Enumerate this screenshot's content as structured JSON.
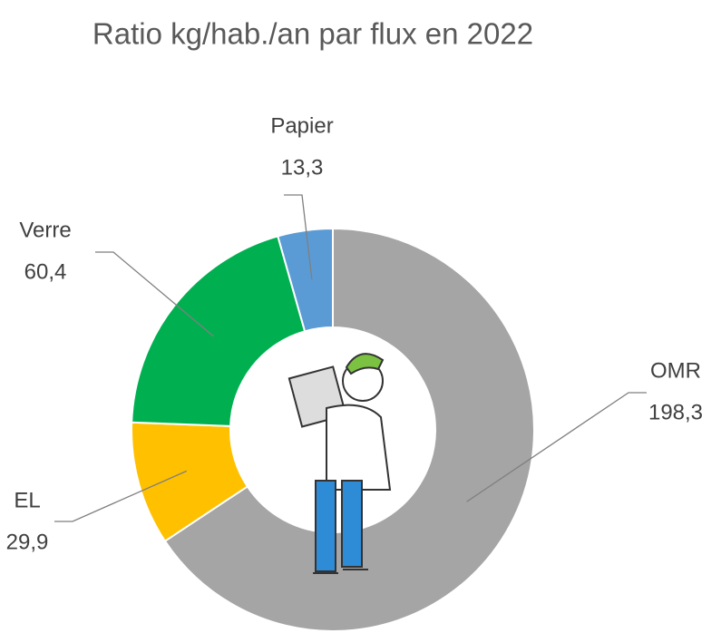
{
  "chart_data": {
    "type": "donut",
    "title": "Ratio kg/hab./an par flux en 2022",
    "categories": [
      "OMR",
      "EL",
      "Verre",
      "Papier"
    ],
    "values": [
      198.3,
      29.9,
      60.4,
      13.3
    ],
    "value_labels": [
      "198,3",
      "29,9",
      "60,4",
      "13,3"
    ],
    "colors": [
      "#a5a5a5",
      "#ffc000",
      "#00b050",
      "#5b9bd5"
    ]
  }
}
